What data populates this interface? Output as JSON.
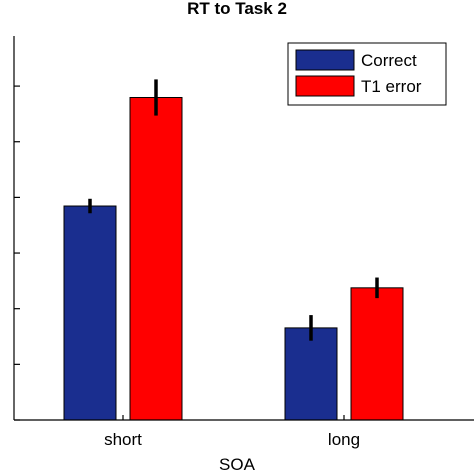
{
  "chart_data": {
    "type": "bar",
    "title": "RT to Task 2",
    "xlabel": "SOA",
    "ylabel": "",
    "categories": [
      "short",
      "long"
    ],
    "series": [
      {
        "name": "Correct",
        "color": "#1a2e8f",
        "values": [
          0.769,
          0.331
        ],
        "errors": [
          0.026,
          0.046
        ]
      },
      {
        "name": "T1 error",
        "color": "#ff0000",
        "values": [
          1.159,
          0.475
        ],
        "errors": [
          0.065,
          0.037
        ]
      }
    ],
    "ylim": [
      0,
      1.38
    ],
    "y_ticks": [
      0,
      0.2,
      0.4,
      0.6,
      0.8,
      1.0,
      1.2,
      1.4
    ],
    "grid": false,
    "legend_position": "top-right"
  }
}
